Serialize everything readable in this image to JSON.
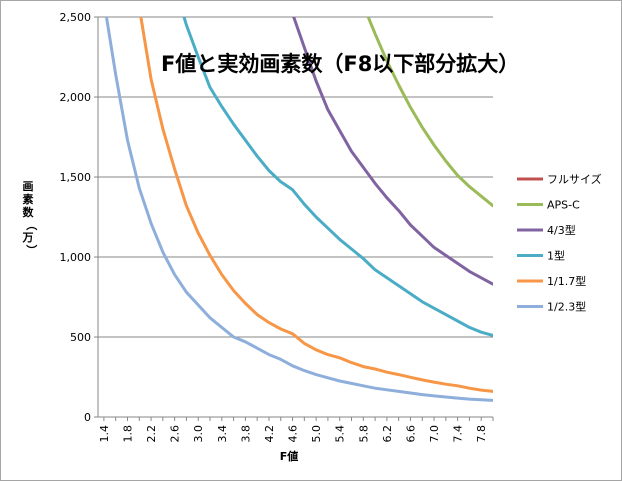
{
  "chart_data": {
    "type": "line",
    "title": "F値と実効画素数（F8以下部分拡大）",
    "xlabel": "F値",
    "ylabel": "画素数（万）",
    "x": [
      1.4,
      1.6,
      1.8,
      2.0,
      2.2,
      2.4,
      2.6,
      2.8,
      3.0,
      3.2,
      3.4,
      3.6,
      3.8,
      4.0,
      4.2,
      4.4,
      4.6,
      4.8,
      5.0,
      5.2,
      5.4,
      5.6,
      5.8,
      6.0,
      6.2,
      6.4,
      6.6,
      6.8,
      7.0,
      7.2,
      7.4,
      7.6,
      7.8,
      8.0
    ],
    "x_tick_labels": [
      "1.4",
      "1.8",
      "2.2",
      "2.6",
      "3.0",
      "3.4",
      "3.8",
      "4.2",
      "4.6",
      "5.0",
      "5.4",
      "5.8",
      "6.2",
      "6.6",
      "7.0",
      "7.4",
      "7.8"
    ],
    "ylim": [
      0,
      2500
    ],
    "y_tick_labels": [
      "0",
      "500",
      "1,000",
      "1,500",
      "2,000",
      "2,500"
    ],
    "y_ticks": [
      0,
      500,
      1000,
      1500,
      2000,
      2500
    ],
    "grid": true,
    "legend_position": "right",
    "series": [
      {
        "name": "フルサイズ",
        "color": "#c0504d",
        "values": [
          null,
          null,
          null,
          null,
          null,
          null,
          null,
          null,
          null,
          null,
          null,
          null,
          null,
          null,
          null,
          null,
          null,
          null,
          null,
          null,
          null,
          null,
          null,
          null,
          null,
          null,
          null,
          null,
          null,
          null,
          null,
          null,
          null,
          null
        ]
      },
      {
        "name": "APS-C",
        "color": "#9bbb59",
        "values": [
          null,
          null,
          null,
          null,
          null,
          null,
          null,
          null,
          null,
          null,
          null,
          null,
          null,
          null,
          null,
          null,
          null,
          null,
          null,
          null,
          null,
          null,
          2575,
          2395,
          2225,
          2075,
          1935,
          1810,
          1700,
          1600,
          1510,
          1440,
          1380,
          1320
        ]
      },
      {
        "name": "4/3型",
        "color": "#8064a2",
        "values": [
          null,
          null,
          null,
          null,
          null,
          null,
          null,
          null,
          null,
          null,
          null,
          null,
          null,
          null,
          null,
          null,
          2520,
          2310,
          2100,
          1920,
          1790,
          1660,
          1560,
          1460,
          1370,
          1290,
          1200,
          1130,
          1060,
          1010,
          960,
          910,
          870,
          830
        ]
      },
      {
        "name": "1型",
        "color": "#4bacc6",
        "values": [
          null,
          null,
          null,
          null,
          null,
          null,
          2700,
          2450,
          2250,
          2060,
          1940,
          1830,
          1730,
          1630,
          1540,
          1470,
          1420,
          1330,
          1250,
          1180,
          1110,
          1050,
          990,
          920,
          870,
          820,
          770,
          720,
          680,
          640,
          600,
          560,
          530,
          510
        ]
      },
      {
        "name": "1/1.7型",
        "color": "#f79646",
        "values": [
          null,
          null,
          2700,
          2560,
          2110,
          1800,
          1550,
          1320,
          1150,
          1010,
          890,
          790,
          710,
          640,
          590,
          550,
          520,
          460,
          420,
          390,
          370,
          340,
          315,
          300,
          280,
          265,
          248,
          232,
          218,
          205,
          195,
          180,
          168,
          160
        ]
      },
      {
        "name": "1/2.3型",
        "color": "#8eaedb",
        "values": [
          2600,
          2140,
          1730,
          1430,
          1210,
          1030,
          890,
          780,
          700,
          620,
          560,
          500,
          470,
          430,
          390,
          360,
          320,
          290,
          265,
          245,
          225,
          210,
          195,
          180,
          170,
          160,
          150,
          140,
          132,
          125,
          118,
          112,
          108,
          104
        ]
      }
    ]
  }
}
